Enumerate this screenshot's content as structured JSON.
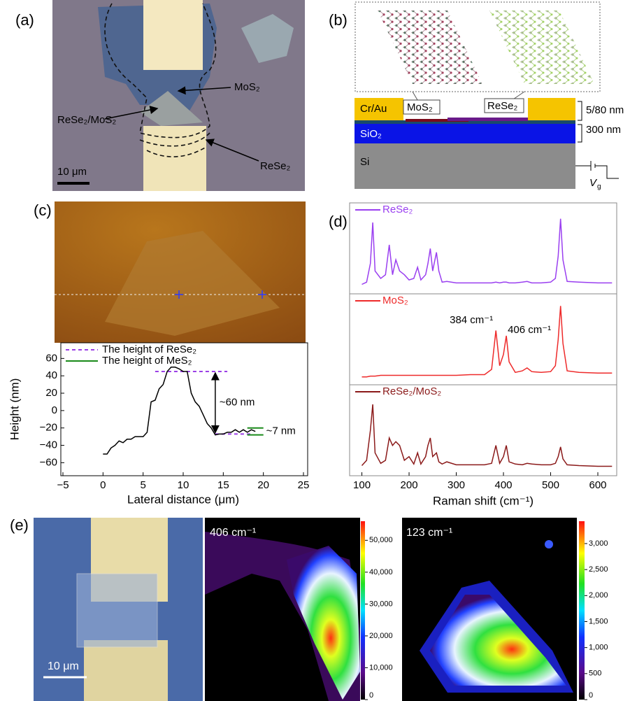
{
  "figure": {
    "panel_a": {
      "label": "(a)",
      "mos2": "MoS₂",
      "heterostructure": "ReSe₂/MoS₂",
      "rese2": "ReSe₂",
      "scale_bar": "10 μm"
    },
    "panel_b": {
      "label": "(b)",
      "electrode": "Cr/Au",
      "mos2": "MoS₂",
      "rese2": "ReSe₂",
      "electrode_thickness": "5/80 nm",
      "oxide_thickness": "300 nm",
      "oxide": "SiO₂",
      "substrate": "Si",
      "gate_symbol": "V",
      "gate_subscript": "g"
    },
    "panel_c": {
      "label": "(c)"
    },
    "panel_d": {
      "label": "(d)"
    },
    "panel_e": {
      "label": "(e)",
      "scale_bar": "10 μm"
    }
  },
  "chart_data": [
    {
      "type": "line",
      "xlabel": "Lateral distance (μm)",
      "ylabel": "Height (nm)",
      "xlim": [
        -5,
        25
      ],
      "ylim": [
        -75,
        78
      ],
      "xticks": [
        {
          "value": -5,
          "label": "−5"
        },
        0,
        5,
        10,
        15,
        20,
        25
      ],
      "yticks": [
        {
          "value": -60,
          "label": "−60"
        },
        {
          "value": -40,
          "label": "−40"
        },
        {
          "value": -20,
          "label": "−20"
        },
        0,
        20,
        40,
        60
      ],
      "color": "#000000",
      "x": [
        0,
        0.5,
        1,
        1.5,
        2,
        2.5,
        3,
        3.5,
        4,
        4.5,
        5,
        5.5,
        6,
        6.5,
        7,
        7.5,
        8,
        8.5,
        9,
        9.5,
        10,
        10.5,
        11,
        11.5,
        12,
        12.5,
        13,
        13.5,
        14,
        14.5,
        15,
        15.5,
        16,
        16.5,
        17,
        17.5,
        18,
        18.5,
        19
      ],
      "values": [
        -50,
        -50,
        -43,
        -40,
        -35,
        -37,
        -33,
        -33,
        -30,
        -30,
        -30,
        -25,
        10,
        12,
        25,
        30,
        45,
        50,
        50,
        48,
        45,
        45,
        20,
        10,
        5,
        -5,
        -15,
        -20,
        -28,
        -27,
        -27,
        -25,
        -25,
        -22,
        -25,
        -22,
        -25,
        -22,
        -24
      ],
      "series": [
        {
          "name": "The height of ReSe₂",
          "color": "#9b3fe6",
          "dashed": true,
          "segments": [
            {
              "x": [
                6.5,
                15.5
              ],
              "values": [
                45,
                45
              ]
            },
            {
              "x": [
                14,
                18.5
              ],
              "values": [
                -27,
                -27
              ]
            }
          ]
        },
        {
          "name": "The height of MeS₂",
          "color": "#1a8a1a",
          "dashed": false,
          "segments": [
            {
              "x": [
                18,
                20
              ],
              "values": [
                -20,
                -20
              ]
            },
            {
              "x": [
                18,
                20
              ],
              "values": [
                -28,
                -28
              ]
            }
          ]
        }
      ],
      "annotations": [
        "~60 nm",
        "~7 nm"
      ]
    },
    {
      "type": "spectra",
      "xlabel": "Raman shift (cm⁻¹)",
      "xlim": [
        74,
        640
      ],
      "xticks": [
        100,
        200,
        300,
        400,
        500,
        600
      ],
      "ylim": [
        -0.05,
        1
      ],
      "x": [
        100,
        110,
        118,
        123,
        128,
        140,
        150,
        158,
        165,
        172,
        180,
        190,
        200,
        210,
        218,
        225,
        235,
        240,
        245,
        250,
        258,
        263,
        270,
        280,
        300,
        330,
        360,
        375,
        384,
        392,
        400,
        406,
        412,
        425,
        440,
        450,
        460,
        480,
        500,
        510,
        516,
        521,
        526,
        535,
        560,
        600,
        630
      ],
      "series": [
        {
          "name": "ReSe₂",
          "color": "#9a3ff0",
          "values": [
            0.02,
            0.05,
            0.3,
            0.85,
            0.2,
            0.1,
            0.15,
            0.55,
            0.15,
            0.35,
            0.2,
            0.15,
            0.08,
            0.1,
            0.25,
            0.08,
            0.15,
            0.3,
            0.5,
            0.2,
            0.45,
            0.2,
            0.05,
            0.06,
            0.04,
            0.04,
            0.04,
            0.04,
            0.05,
            0.04,
            0.05,
            0.05,
            0.04,
            0.04,
            0.05,
            0.06,
            0.04,
            0.04,
            0.05,
            0.1,
            0.4,
            0.9,
            0.35,
            0.06,
            0.05,
            0.04,
            0.04
          ]
        },
        {
          "name": "MoS₂",
          "color": "#ee2a2a",
          "values": [
            0.0,
            0.0,
            0.01,
            0.01,
            0.01,
            0.02,
            0.02,
            0.02,
            0.02,
            0.02,
            0.02,
            0.02,
            0.02,
            0.02,
            0.02,
            0.02,
            0.02,
            0.02,
            0.02,
            0.02,
            0.02,
            0.02,
            0.02,
            0.02,
            0.02,
            0.03,
            0.03,
            0.1,
            0.62,
            0.15,
            0.3,
            0.55,
            0.2,
            0.06,
            0.08,
            0.12,
            0.07,
            0.06,
            0.07,
            0.15,
            0.5,
            0.95,
            0.45,
            0.08,
            0.06,
            0.05,
            0.05
          ]
        },
        {
          "name": "ReSe₂/MoS₂",
          "color": "#8b1a1a",
          "values": [
            0.03,
            0.1,
            0.5,
            0.85,
            0.2,
            0.06,
            0.1,
            0.4,
            0.3,
            0.35,
            0.3,
            0.1,
            0.15,
            0.05,
            0.2,
            0.05,
            0.15,
            0.3,
            0.4,
            0.15,
            0.2,
            0.08,
            0.05,
            0.08,
            0.04,
            0.04,
            0.04,
            0.06,
            0.3,
            0.06,
            0.15,
            0.3,
            0.08,
            0.05,
            0.04,
            0.06,
            0.05,
            0.04,
            0.04,
            0.06,
            0.15,
            0.28,
            0.12,
            0.04,
            0.03,
            0.02,
            0.02
          ]
        }
      ],
      "annotations": [
        "384 cm⁻¹",
        "406 cm⁻¹"
      ]
    },
    {
      "type": "colorbar",
      "title": "406 cm⁻¹",
      "ylim": [
        0,
        56000
      ],
      "yticks": [
        0,
        {
          "value": 10000,
          "label": "10,000"
        },
        {
          "value": 20000,
          "label": "20,000"
        },
        {
          "value": 30000,
          "label": "30,000"
        },
        {
          "value": 40000,
          "label": "40,000"
        },
        {
          "value": 50000,
          "label": "50,000"
        }
      ]
    },
    {
      "type": "colorbar",
      "title": "123 cm⁻¹",
      "ylim": [
        0,
        3430
      ],
      "yticks": [
        0,
        500,
        {
          "value": 1000,
          "label": "1,000"
        },
        {
          "value": 1500,
          "label": "1,500"
        },
        {
          "value": 2000,
          "label": "2,000"
        },
        {
          "value": 2500,
          "label": "2,500"
        },
        {
          "value": 3000,
          "label": "3,000"
        }
      ]
    }
  ]
}
